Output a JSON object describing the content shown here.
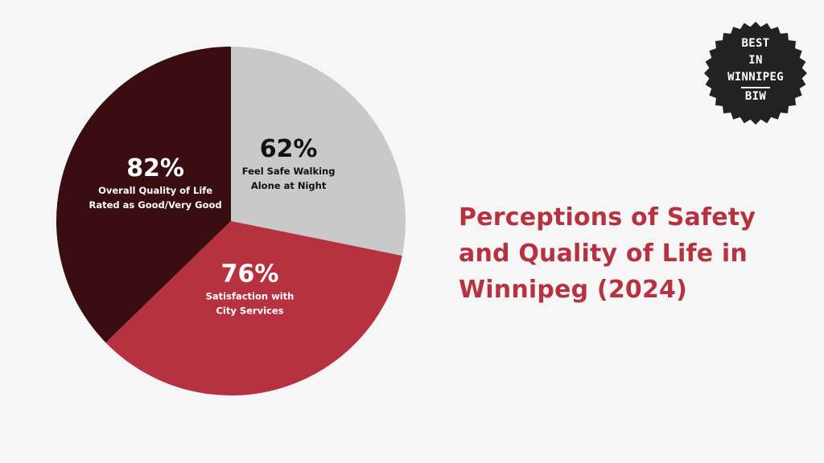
{
  "colors": {
    "background": "#f6f6f6",
    "accent": "#b73240",
    "badge": "#222222"
  },
  "title": {
    "lines": [
      "Perceptions of Safety",
      "and Quality of Life in",
      "Winnipeg (2024)"
    ]
  },
  "badge": {
    "lines": [
      "BEST",
      "IN",
      "WINNIPEG"
    ],
    "abbr": "BIW"
  },
  "chart_data": {
    "type": "pie",
    "title": "Perceptions of Safety and Quality of Life in Winnipeg (2024)",
    "slices": [
      {
        "value_label": "62%",
        "value": 62,
        "label_lines": [
          "Feel Safe Walking",
          "Alone at Night"
        ],
        "color": "#c9c9c9",
        "text_color": "#111111"
      },
      {
        "value_label": "76%",
        "value": 76,
        "label_lines": [
          "Satisfaction with",
          "City Services"
        ],
        "color": "#b73240",
        "text_color": "#ffffff"
      },
      {
        "value_label": "82%",
        "value": 82,
        "label_lines": [
          "Overall Quality of Life",
          "Rated as Good/Very Good"
        ],
        "color": "#3a0e10",
        "text_color": "#ffffff"
      }
    ],
    "legend": "none"
  }
}
